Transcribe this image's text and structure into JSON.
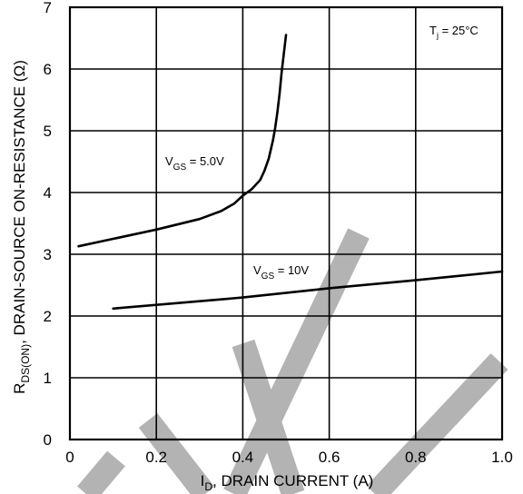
{
  "chart_data": {
    "type": "line",
    "xlabel": {
      "main": "I",
      "sub": "D",
      "rest": ", DRAIN CURRENT (A)"
    },
    "ylabel": {
      "main": "R",
      "sub": "DS(ON)",
      "rest": ", DRAIN-SOURCE ON-RESISTANCE (Ω)"
    },
    "xlim": [
      0,
      1.0
    ],
    "ylim": [
      0,
      7
    ],
    "xticks": [
      "0",
      "0.2",
      "0.4",
      "0.6",
      "0.8",
      "1.0"
    ],
    "yticks": [
      "0",
      "1",
      "2",
      "3",
      "4",
      "5",
      "6",
      "7"
    ],
    "grid": true,
    "legend": "none",
    "annotation": {
      "main": "T",
      "sub": "j",
      "rest": " = 25°C"
    },
    "series": [
      {
        "name": {
          "main": "V",
          "sub": "GS",
          "rest": " = 5.0V"
        },
        "x": [
          0.02,
          0.1,
          0.2,
          0.3,
          0.35,
          0.38,
          0.4,
          0.42,
          0.44,
          0.45,
          0.46,
          0.47,
          0.475,
          0.48,
          0.485,
          0.49,
          0.495,
          0.5
        ],
        "y": [
          3.13,
          3.25,
          3.4,
          3.57,
          3.7,
          3.82,
          3.95,
          4.05,
          4.2,
          4.35,
          4.55,
          4.85,
          5.05,
          5.3,
          5.6,
          5.95,
          6.25,
          6.55
        ]
      },
      {
        "name": {
          "main": "V",
          "sub": "GS",
          "rest": " = 10V"
        },
        "x": [
          0.1,
          0.4,
          0.6,
          0.8,
          1.0
        ],
        "y": [
          2.12,
          2.3,
          2.45,
          2.58,
          2.72
        ]
      }
    ]
  },
  "colors": {
    "line": "#000000",
    "grid": "#000000",
    "watermark": "#b3b3b3"
  },
  "watermark": "decorative grey diagonal strokes"
}
